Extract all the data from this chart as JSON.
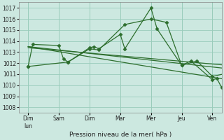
{
  "xlabel": "Pression niveau de la mer( hPa )",
  "background_color": "#cce8e0",
  "grid_color": "#99ccbb",
  "line_color": "#2d6e2d",
  "ylim": [
    1007.5,
    1017.5
  ],
  "yticks": [
    1008,
    1009,
    1010,
    1011,
    1012,
    1013,
    1014,
    1015,
    1016,
    1017
  ],
  "xlim": [
    -0.3,
    6.3
  ],
  "xtick_positions": [
    0,
    1,
    2,
    3,
    4,
    5,
    6
  ],
  "xtick_labels": [
    "Dim\nlun",
    "Sam",
    "Dim",
    "Mar",
    "Mer",
    "Jeu",
    "Ven"
  ],
  "series": [
    {
      "x": [
        0.0,
        0.15,
        1.0,
        1.15,
        1.3,
        2.0,
        2.15,
        2.3,
        3.0,
        3.15,
        4.0,
        4.2,
        5.0,
        5.3,
        6.0,
        6.15,
        6.3,
        6.5
      ],
      "y": [
        1011.7,
        1013.7,
        1013.6,
        1012.4,
        1012.1,
        1013.4,
        1013.5,
        1013.3,
        1014.6,
        1013.3,
        1017.0,
        1015.1,
        1011.8,
        1012.2,
        1010.5,
        1010.6,
        1009.8,
        1011.1
      ],
      "marker": "D",
      "markersize": 2.5,
      "linewidth": 0.9
    },
    {
      "x": [
        0.0,
        1.3,
        2.0,
        2.3,
        3.15,
        4.0,
        4.5,
        5.0,
        5.5,
        6.0,
        6.5
      ],
      "y": [
        1011.7,
        1012.1,
        1013.3,
        1013.2,
        1015.5,
        1016.0,
        1015.7,
        1011.8,
        1012.2,
        1010.8,
        1011.1
      ],
      "marker": "D",
      "markersize": 2.5,
      "linewidth": 0.9
    },
    {
      "x": [
        0.0,
        6.5
      ],
      "y": [
        1013.5,
        1011.5
      ],
      "marker": null,
      "markersize": 0,
      "linewidth": 0.9
    },
    {
      "x": [
        0.0,
        6.5
      ],
      "y": [
        1013.4,
        1011.8
      ],
      "marker": null,
      "markersize": 0,
      "linewidth": 0.9
    },
    {
      "x": [
        0.0,
        6.5
      ],
      "y": [
        1013.5,
        1010.5
      ],
      "marker": null,
      "markersize": 0,
      "linewidth": 0.9
    }
  ]
}
